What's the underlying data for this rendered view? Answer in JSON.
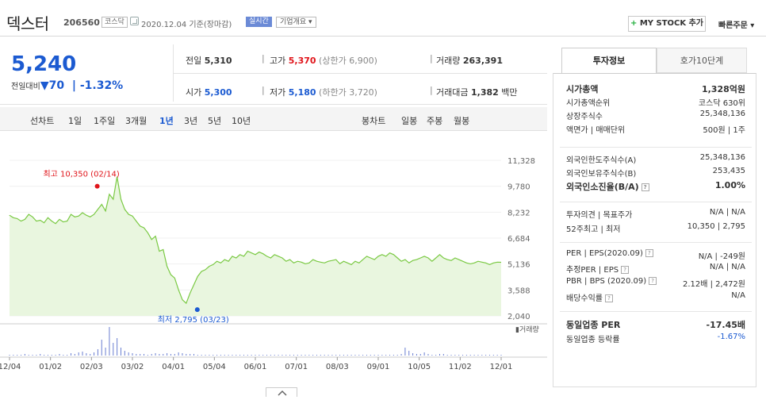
{
  "header": {
    "name": "덱스터",
    "code": "206560",
    "market": "코스닥",
    "date_text": "2020.12.04 기준(장마감)",
    "realtime": "실시간",
    "company_info": "기업개요",
    "mystock": "MY STOCK 추가",
    "quick_order": "빠른주문"
  },
  "price": {
    "current": "5,240",
    "change_label": "전일대비",
    "change_value": "70",
    "change_pct": "-1.32%",
    "prev_label": "전일",
    "prev": "5,310",
    "high_label": "고가",
    "high": "5,370",
    "upper_limit": "(상한가 6,900)",
    "volume_label": "거래량",
    "volume": "263,391",
    "open_label": "시가",
    "open": "5,300",
    "low_label": "저가",
    "low": "5,180",
    "lower_limit": "(하한가 3,720)",
    "amount_label": "거래대금",
    "amount": "1,382",
    "amount_unit": "백만"
  },
  "period_bar": {
    "line_label": "선차트",
    "line_items": [
      "1일",
      "1주일",
      "3개월",
      "1년",
      "3년",
      "5년",
      "10년"
    ],
    "active": "1년",
    "candle_label": "봉차트",
    "candle_items": [
      "일봉",
      "주봉",
      "월봉"
    ]
  },
  "chart_data": {
    "type": "area",
    "y_ticks": [
      "11,328",
      "9,780",
      "8,232",
      "6,684",
      "5,136",
      "3,588",
      "2,040"
    ],
    "ylim": [
      2040,
      11328
    ],
    "x_ticks": [
      "12/04",
      "01/02",
      "02/03",
      "03/02",
      "04/01",
      "05/04",
      "06/01",
      "07/01",
      "08/03",
      "09/01",
      "10/05",
      "11/02",
      "12/01"
    ],
    "high_annotation": "최고 10,350 (02/14)",
    "low_annotation": "최저 2,795 (03/23)",
    "volume_label": "거래량",
    "color": "#7ac943",
    "fill": "#e9f6df",
    "series": [
      {
        "values": [
          8050,
          7900,
          7850,
          7700,
          7800,
          8100,
          7950,
          7700,
          7750,
          7600,
          7900,
          7700,
          7550,
          7800,
          7650,
          7700,
          8100,
          7950,
          8000,
          8200,
          8050,
          7950,
          8100,
          8400,
          8700,
          8300,
          9300,
          9000,
          10350,
          9000,
          8400,
          8100,
          8000,
          7700,
          7400,
          7300,
          7000,
          6600,
          6800,
          5900,
          6000,
          5000,
          4500,
          4300,
          3600,
          3000,
          2795,
          3400,
          3900,
          4400,
          4700,
          4800,
          5000,
          5100,
          5300,
          5200,
          5400,
          5300,
          5600,
          5500,
          5700,
          5600,
          5900,
          5800,
          5700,
          5850,
          5750,
          5600,
          5500,
          5700,
          5600,
          5500,
          5300,
          5400,
          5200,
          5300,
          5250,
          5150,
          5200,
          5400,
          5300,
          5250,
          5200,
          5300,
          5350,
          5400,
          5150,
          5300,
          5200,
          5100,
          5300,
          5200,
          5400,
          5600,
          5500,
          5400,
          5600,
          5700,
          5600,
          5800,
          5700,
          5500,
          5300,
          5400,
          5200,
          5350,
          5400,
          5500,
          5600,
          5500,
          5300,
          5500,
          5700,
          5500,
          5400,
          5350,
          5500,
          5400,
          5300,
          5200,
          5150,
          5200,
          5300,
          5250,
          5200,
          5100,
          5200,
          5250,
          5240
        ]
      }
    ],
    "volume": [
      1,
      1,
      1,
      1,
      2,
      1,
      1,
      1,
      2,
      1,
      1,
      1,
      1,
      2,
      1,
      1,
      3,
      2,
      4,
      5,
      3,
      2,
      4,
      8,
      20,
      10,
      36,
      16,
      22,
      10,
      6,
      4,
      3,
      2,
      2,
      2,
      1,
      2,
      3,
      2,
      2,
      3,
      2,
      2,
      4,
      3,
      2,
      2,
      2,
      1,
      1,
      1,
      1,
      1,
      1,
      1,
      1,
      1,
      1,
      1,
      1,
      1,
      1,
      1,
      1,
      1,
      1,
      1,
      1,
      1,
      1,
      1,
      1,
      1,
      1,
      1,
      1,
      1,
      1,
      1,
      1,
      1,
      1,
      1,
      1,
      1,
      1,
      1,
      1,
      1,
      1,
      1,
      1,
      1,
      1,
      1,
      1,
      1,
      1,
      1,
      1,
      1,
      2,
      10,
      6,
      3,
      2,
      2,
      4,
      2,
      1,
      1,
      2,
      2,
      1,
      1,
      1,
      1,
      1,
      1,
      1,
      1,
      1,
      1,
      1,
      1,
      1,
      1,
      1
    ]
  },
  "right_panel": {
    "tabs": [
      "투자정보",
      "호가10단계"
    ],
    "rows": [
      {
        "label": "시가총액",
        "value": "1,328억원"
      },
      {
        "label": "시가총액순위",
        "value": "코스닥 630위"
      },
      {
        "label": "상장주식수",
        "value": "25,348,136"
      },
      {
        "label": "액면가 | 매매단위",
        "value": "500원 | 1주"
      },
      {
        "label": "외국인한도주식수(A)",
        "value": "25,348,136"
      },
      {
        "label": "외국인보유주식수(B)",
        "value": "253,435"
      },
      {
        "label": "외국인소진율(B/A)",
        "value": "1.00%"
      },
      {
        "label": "투자의견 | 목표주가",
        "value": "N/A | N/A"
      },
      {
        "label": "52주최고 | 최저",
        "value": "10,350 | 2,795"
      },
      {
        "label": "PER | EPS(2020.09)",
        "value": "N/A | -249원"
      },
      {
        "label": "추정PER | EPS",
        "value": "N/A | N/A"
      },
      {
        "label": "PBR | BPS (2020.09)",
        "value": "2.12배 | 2,472원"
      },
      {
        "label": "배당수익률",
        "value": "N/A"
      },
      {
        "label": "동일업종 PER",
        "value": "-17.45배"
      },
      {
        "label": "동일업종 등락률",
        "value": "-1.67%"
      }
    ]
  }
}
